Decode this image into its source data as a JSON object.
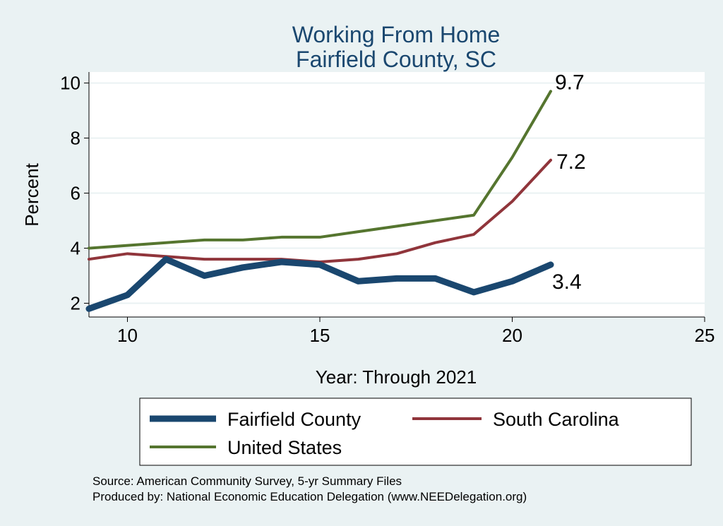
{
  "chart_data": {
    "type": "line",
    "title": [
      "Working From Home",
      "Fairfield County, SC"
    ],
    "xlabel": "Year: Through 2021",
    "ylabel": "Percent",
    "xlim": [
      9,
      25
    ],
    "ylim": [
      1.5,
      10.4
    ],
    "xticks": [
      10,
      15,
      20,
      25
    ],
    "yticks": [
      2,
      4,
      6,
      8,
      10
    ],
    "grid": "horizontal",
    "legend_position": "bottom",
    "series": [
      {
        "name": "Fairfield County",
        "color": "#1a476f",
        "x": [
          9,
          10,
          11,
          12,
          13,
          14,
          15,
          16,
          17,
          18,
          19,
          20,
          21
        ],
        "values": [
          1.8,
          2.3,
          3.6,
          3.0,
          3.3,
          3.5,
          3.4,
          2.8,
          2.9,
          2.9,
          2.4,
          2.8,
          3.4
        ],
        "end_label": "3.4"
      },
      {
        "name": "South Carolina",
        "color": "#90353b",
        "x": [
          9,
          10,
          11,
          12,
          13,
          14,
          15,
          16,
          17,
          18,
          19,
          20,
          21
        ],
        "values": [
          3.6,
          3.8,
          3.7,
          3.6,
          3.6,
          3.6,
          3.5,
          3.6,
          3.8,
          4.2,
          4.5,
          5.7,
          7.2
        ],
        "end_label": "7.2"
      },
      {
        "name": "United States",
        "color": "#55752f",
        "x": [
          9,
          10,
          11,
          12,
          13,
          14,
          15,
          16,
          17,
          18,
          19,
          20,
          21
        ],
        "values": [
          4.0,
          4.1,
          4.2,
          4.3,
          4.3,
          4.4,
          4.4,
          4.6,
          4.8,
          5.0,
          5.2,
          7.3,
          9.7
        ],
        "end_label": "9.7"
      }
    ],
    "notes": [
      "Source: American Community Survey, 5-yr Summary Files",
      "Produced by: National Economic Education Delegation (www.NEEDelegation.org)"
    ]
  }
}
